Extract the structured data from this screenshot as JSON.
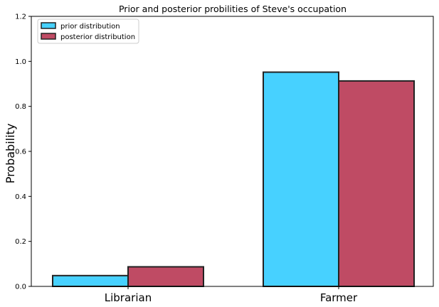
{
  "chart_data": {
    "type": "bar",
    "title": "Prior and posterior probilities of Steve's occupation",
    "xlabel": "",
    "ylabel": "Probability",
    "categories": [
      "Librarian",
      "Farmer"
    ],
    "series": [
      {
        "name": "prior distribution",
        "values": [
          0.048,
          0.952
        ],
        "color": "#00bfff"
      },
      {
        "name": "posterior distribution",
        "values": [
          0.087,
          0.913
        ],
        "color": "#a60628"
      }
    ],
    "ylim": [
      0,
      1.2
    ],
    "yticks": [
      "0.0",
      "0.2",
      "0.4",
      "0.6",
      "0.8",
      "1.0",
      "1.2"
    ],
    "grid": false,
    "legend_position": "top-left"
  }
}
